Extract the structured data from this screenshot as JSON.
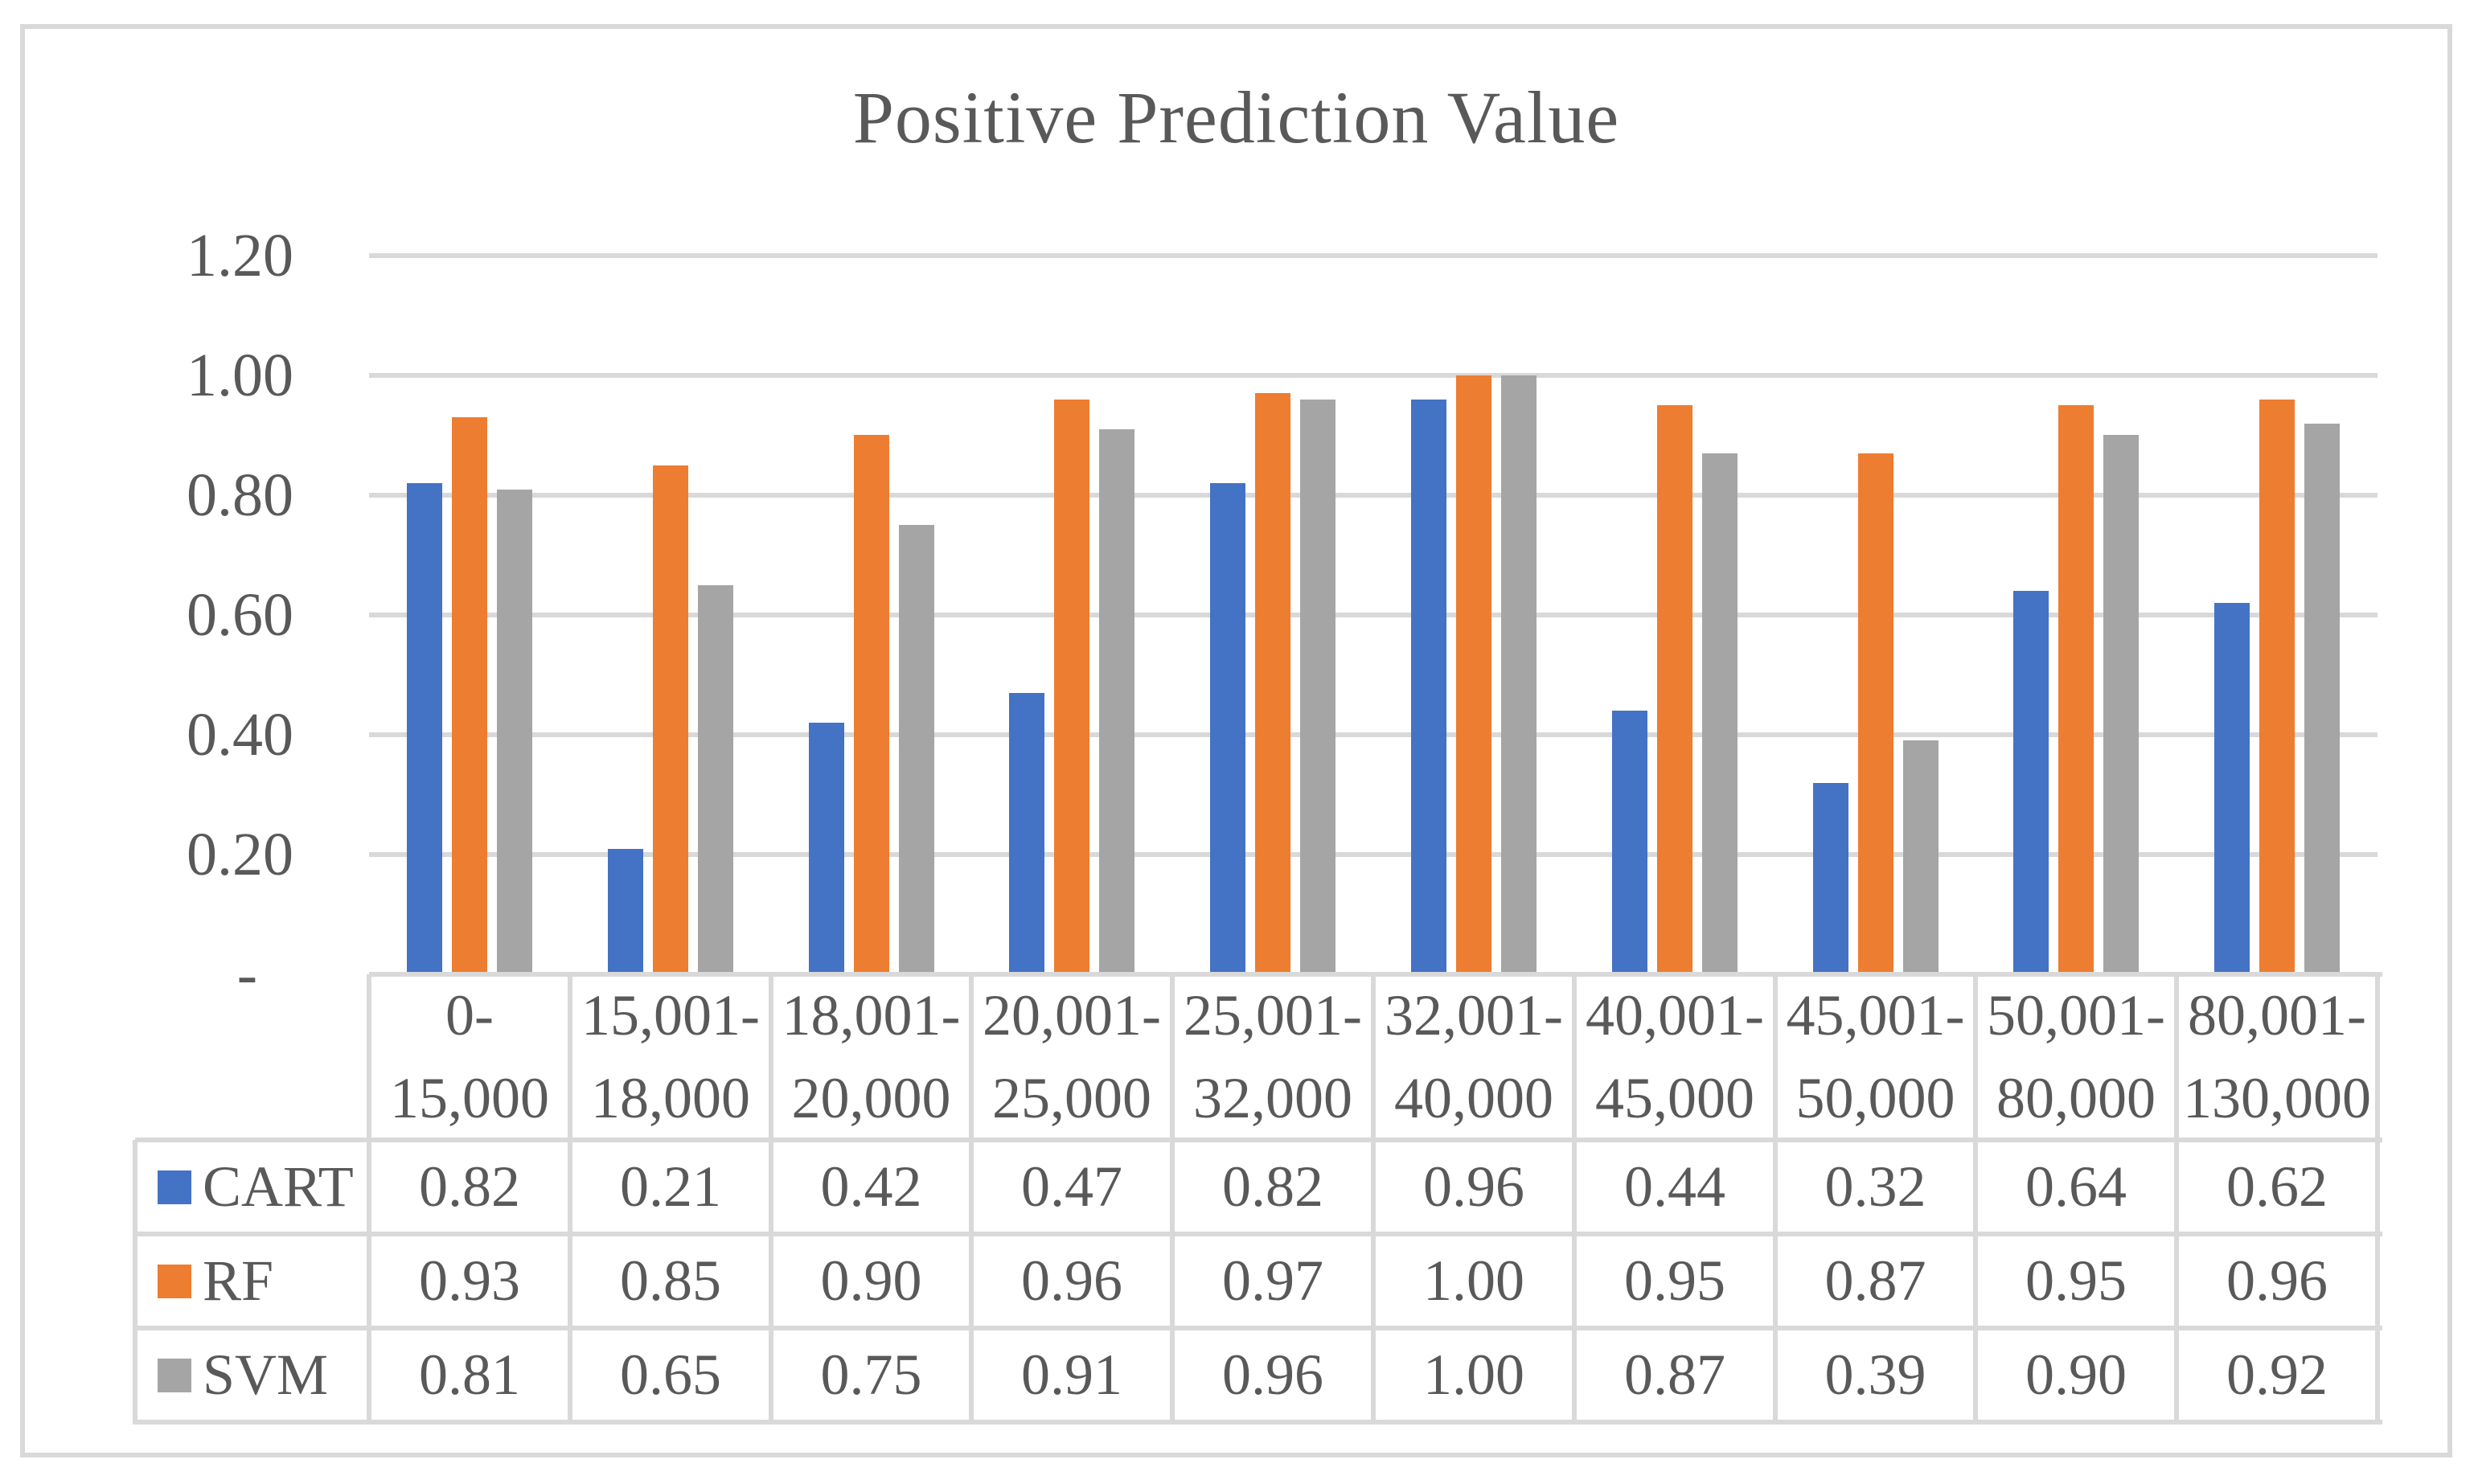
{
  "page": {
    "background": "#ffffff",
    "frame_border_color": "#D9D9D9",
    "gridline_color": "#D9D9D9",
    "text_color": "#595959"
  },
  "chart_data": {
    "type": "bar",
    "title": "Positive Prediction Value",
    "categories": [
      "0-15,000",
      "15,001-18,000",
      "18,001-20,000",
      "20,001-25,000",
      "25,001-32,000",
      "32,001-40,000",
      "40,001-45,000",
      "45,001-50,000",
      "50,001-80,000",
      "80,001-130,000"
    ],
    "categories_two_line": [
      [
        "0-",
        "15,000"
      ],
      [
        "15,001-",
        "18,000"
      ],
      [
        "18,001-",
        "20,000"
      ],
      [
        "20,001-",
        "25,000"
      ],
      [
        "25,001-",
        "32,000"
      ],
      [
        "32,001-",
        "40,000"
      ],
      [
        "40,001-",
        "45,000"
      ],
      [
        "45,001-",
        "50,000"
      ],
      [
        "50,001-",
        "80,000"
      ],
      [
        "80,001-",
        "130,000"
      ]
    ],
    "series": [
      {
        "name": "CART",
        "color": "#4472C4",
        "values": [
          0.82,
          0.21,
          0.42,
          0.47,
          0.82,
          0.96,
          0.44,
          0.32,
          0.64,
          0.62
        ]
      },
      {
        "name": "RF",
        "color": "#ED7D31",
        "values": [
          0.93,
          0.85,
          0.9,
          0.96,
          0.97,
          1.0,
          0.95,
          0.87,
          0.95,
          0.96
        ]
      },
      {
        "name": "SVM",
        "color": "#A5A5A5",
        "values": [
          0.81,
          0.65,
          0.75,
          0.91,
          0.96,
          1.0,
          0.87,
          0.39,
          0.9,
          0.92
        ]
      }
    ],
    "ylim": [
      0,
      1.2
    ],
    "yticks": [
      {
        "value": 1.2,
        "label": "1.20"
      },
      {
        "value": 1.0,
        "label": "1.00"
      },
      {
        "value": 0.8,
        "label": "0.80"
      },
      {
        "value": 0.6,
        "label": "0.60"
      },
      {
        "value": 0.4,
        "label": "0.40"
      },
      {
        "value": 0.2,
        "label": "0.20"
      },
      {
        "value": 0.0,
        "label": "-"
      }
    ],
    "grid": true,
    "legend_position": "data-table",
    "value_display_decimals": 2
  }
}
